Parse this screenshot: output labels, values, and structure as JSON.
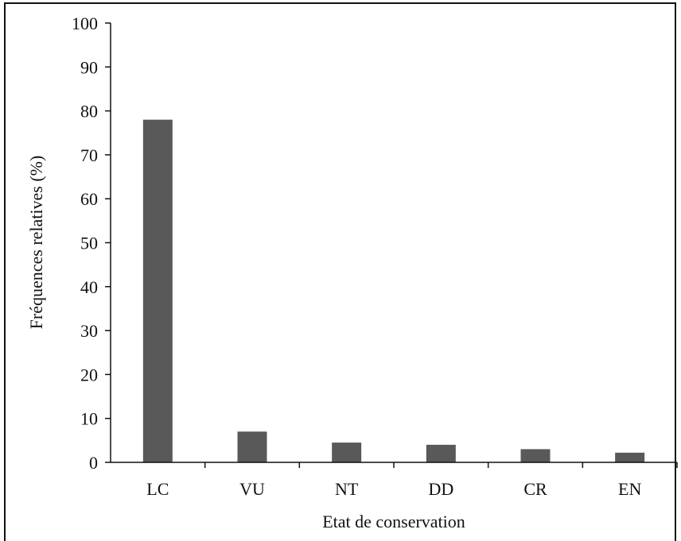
{
  "chart_data": {
    "type": "bar",
    "categories": [
      "LC",
      "VU",
      "NT",
      "DD",
      "CR",
      "EN"
    ],
    "values": [
      78,
      7,
      4.5,
      4,
      3,
      2.2
    ],
    "xlabel": "Etat de conservation",
    "ylabel": "Fréquences relatives (%)",
    "ylim": [
      0,
      100
    ],
    "yticks": [
      0,
      10,
      20,
      30,
      40,
      50,
      60,
      70,
      80,
      90,
      100
    ],
    "bar_color": "#595959",
    "grid": false,
    "legend": "none"
  }
}
